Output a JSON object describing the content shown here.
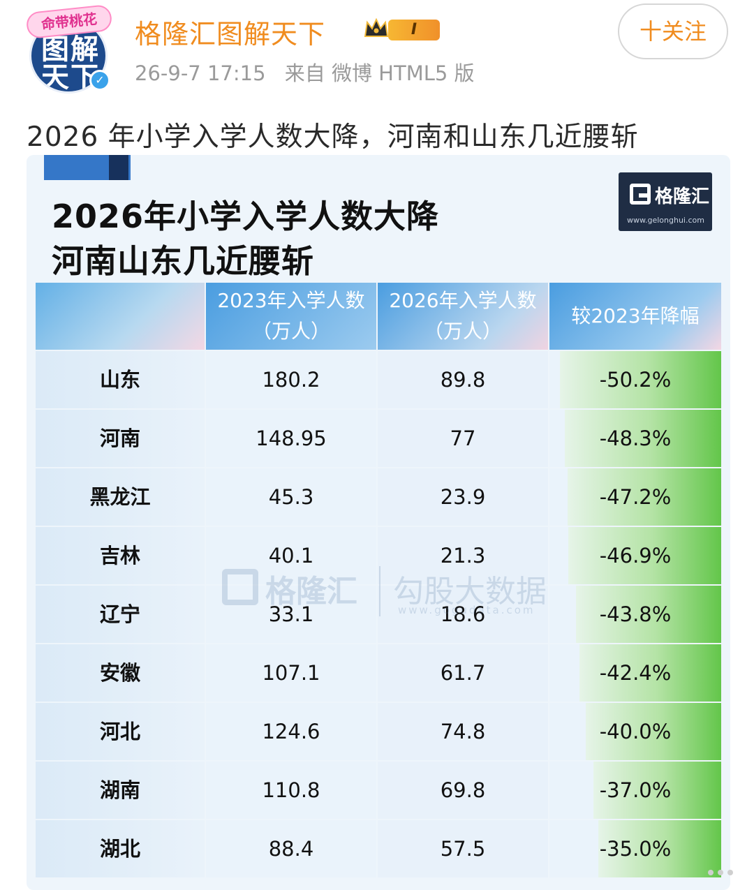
{
  "post": {
    "avatar": {
      "banner_text": "命带桃花",
      "line1": "图解",
      "line2": "天下"
    },
    "username": "格隆汇图解天下",
    "level_badge": "I",
    "timestamp": "26-9-7 17:15",
    "source": "来自 微博 HTML5 版",
    "follow_label": "十关注",
    "text": "2026 年小学入学人数大降，河南和山东几近腰斩"
  },
  "figure": {
    "title_line1": "2026年小学入学人数大降",
    "title_line2": "河南山东几近腰斩",
    "brand_name": "格隆汇",
    "brand_url": "www.gelonghui.com",
    "watermark_brand": "格隆汇",
    "watermark_name": "勾股大数据",
    "watermark_url": "www.gogudata.com",
    "colors": {
      "header_blue": "#4a9de0",
      "bar_green": "#63c64a",
      "username_orange": "#f08c1f"
    }
  },
  "chart_data": {
    "type": "table",
    "columns": [
      "",
      "2023年入学人数\n（万人）",
      "2026年入学人数\n（万人）",
      "较2023年降幅"
    ],
    "header": {
      "col1_line1": "2023年入学人数",
      "col1_line2": "（万人）",
      "col2_line1": "2026年入学人数",
      "col2_line2": "（万人）",
      "col3": "较2023年降幅"
    },
    "rows": [
      {
        "province": "山东",
        "y2023": "180.2",
        "y2026": "89.8",
        "change": "-50.2%",
        "change_value": -50.2
      },
      {
        "province": "河南",
        "y2023": "148.95",
        "y2026": "77",
        "change": "-48.3%",
        "change_value": -48.3
      },
      {
        "province": "黑龙江",
        "y2023": "45.3",
        "y2026": "23.9",
        "change": "-47.2%",
        "change_value": -47.2
      },
      {
        "province": "吉林",
        "y2023": "40.1",
        "y2026": "21.3",
        "change": "-46.9%",
        "change_value": -46.9
      },
      {
        "province": "辽宁",
        "y2023": "33.1",
        "y2026": "18.6",
        "change": "-43.8%",
        "change_value": -43.8
      },
      {
        "province": "安徽",
        "y2023": "107.1",
        "y2026": "61.7",
        "change": "-42.4%",
        "change_value": -42.4
      },
      {
        "province": "河北",
        "y2023": "124.6",
        "y2026": "74.8",
        "change": "-40.0%",
        "change_value": -40.0
      },
      {
        "province": "湖南",
        "y2023": "110.8",
        "y2026": "69.8",
        "change": "-37.0%",
        "change_value": -37.0
      },
      {
        "province": "湖北",
        "y2023": "88.4",
        "y2026": "57.5",
        "change": "-35.0%",
        "change_value": -35.0
      }
    ]
  }
}
